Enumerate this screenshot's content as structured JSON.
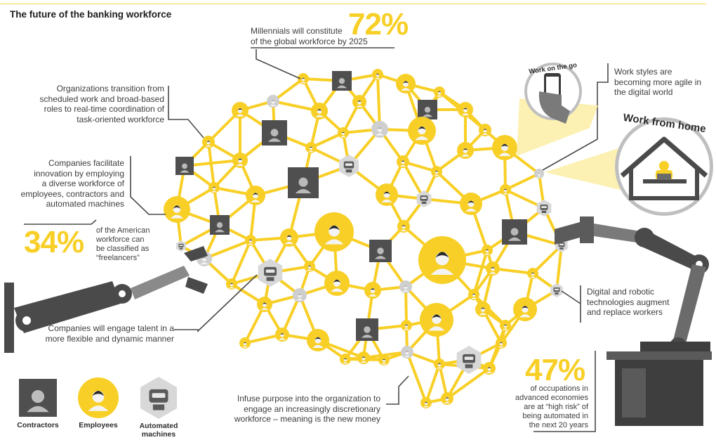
{
  "title": "The future of the banking workforce",
  "colors": {
    "accent": "#f8cf26",
    "dark": "#505050",
    "mid": "#8a8a8a",
    "light": "#c8c8c8"
  },
  "stats": {
    "millennials": {
      "value": "72%",
      "text_line1": "Millennials will constitute",
      "text_line2": "of the global workforce by 2025"
    },
    "freelancers": {
      "value": "34%",
      "lines": [
        "of the American",
        "workforce can",
        "be classified as",
        "“freelancers”"
      ]
    },
    "automation": {
      "value": "47%",
      "lines": [
        "of occupations in",
        "advanced economies",
        "are at “high risk” of",
        "being automated in",
        "the next 20 years"
      ]
    }
  },
  "callouts": {
    "transition": [
      "Organizations transition from",
      "scheduled work and broad-based",
      "roles to real-time coordination of",
      "task-oriented workforce"
    ],
    "innovation": [
      "Companies facilitate",
      "innovation by employing",
      "a diverse workforce of",
      "employees, contractors and",
      "automated machines"
    ],
    "engage": [
      "Companies will engage talent in a",
      "more flexible and dynamic manner"
    ],
    "purpose": [
      "Infuse purpose into the organization to",
      "engage an increasingly discretionary",
      "workforce – meaning is the new money"
    ],
    "agile": [
      "Work styles are",
      "becoming more agile in",
      "the digital world"
    ],
    "robotic": [
      "Digital and robotic",
      "technologies augment",
      "and replace workers"
    ]
  },
  "badges": {
    "on_the_go": "Work on the go",
    "from_home": "Work from home"
  },
  "legend": [
    {
      "label": "Contractors",
      "icon": "contractor-icon"
    },
    {
      "label": "Employees",
      "icon": "employee-icon"
    },
    {
      "label": "Automated machines",
      "label_line1": "Automated",
      "label_line2": "machines",
      "icon": "robot-icon"
    }
  ]
}
